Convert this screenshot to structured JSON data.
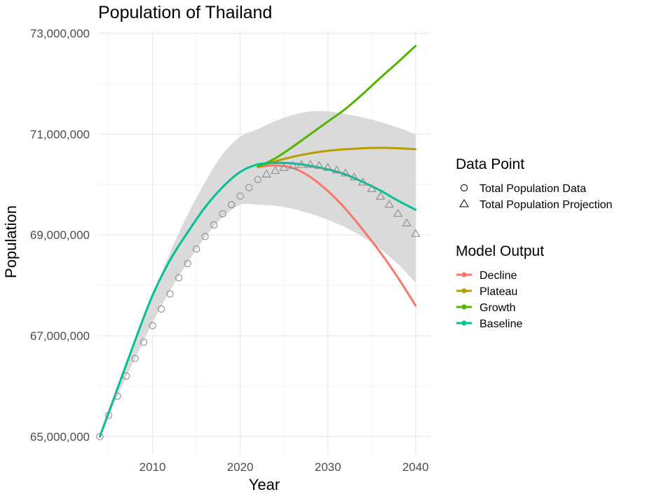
{
  "chart_data": {
    "type": "line",
    "title": "Population of Thailand",
    "xlabel": "Year",
    "ylabel": "Population",
    "xlim": [
      2003.8,
      2041.7
    ],
    "ylim": [
      64650000,
      73050000
    ],
    "x_ticks": [
      2010,
      2020,
      2030,
      2040
    ],
    "x_tick_labels": [
      "2010",
      "2020",
      "2030",
      "2040"
    ],
    "y_ticks": [
      65000000,
      67000000,
      69000000,
      71000000,
      73000000
    ],
    "y_tick_labels": [
      "65,000,000",
      "67,000,000",
      "69,000,000",
      "71,000,000",
      "73,000,000"
    ],
    "grid": true,
    "legend_position": "right",
    "colors": {
      "Decline": "#f8766d",
      "Plateau": "#b79f00",
      "Growth": "#53b400",
      "Baseline": "#00c094",
      "points": "#8c8c8c",
      "band": "#d3d3d3"
    },
    "band": {
      "x": [
        2022,
        2024,
        2026,
        2028,
        2030,
        2032,
        2034,
        2036,
        2038,
        2040
      ],
      "upper": [
        71100000,
        71260000,
        71380000,
        71450000,
        71450000,
        71400000,
        71330000,
        71240000,
        71130000,
        71000000
      ],
      "lower": [
        69600000,
        69580000,
        69520000,
        69420000,
        69300000,
        69150000,
        68960000,
        68720000,
        68420000,
        68050000
      ],
      "pre_x": [
        2004,
        2006,
        2008,
        2010,
        2012,
        2014,
        2016,
        2018,
        2020
      ],
      "pre_upper": [
        65000000,
        65950000,
        66900000,
        67800000,
        68650000,
        69400000,
        70050000,
        70600000,
        70950000
      ],
      "pre_lower": [
        65000000,
        65800000,
        66550000,
        67250000,
        67900000,
        68450000,
        68950000,
        69350000,
        69600000
      ]
    },
    "series": [
      {
        "name": "Baseline",
        "x": [
          2004,
          2006,
          2008,
          2010,
          2012,
          2014,
          2016,
          2018,
          2020,
          2022,
          2024,
          2026,
          2028,
          2030,
          2032,
          2034,
          2036,
          2038,
          2040
        ],
        "y": [
          65000000,
          65950000,
          66900000,
          67800000,
          68500000,
          69050000,
          69550000,
          69950000,
          70250000,
          70400000,
          70430000,
          70420000,
          70370000,
          70300000,
          70200000,
          70050000,
          69880000,
          69680000,
          69500000
        ]
      },
      {
        "name": "Decline",
        "x": [
          2022,
          2024,
          2026,
          2028,
          2030,
          2032,
          2034,
          2036,
          2038,
          2040
        ],
        "y": [
          70350000,
          70380000,
          70330000,
          70150000,
          69870000,
          69520000,
          69100000,
          68650000,
          68150000,
          67600000
        ]
      },
      {
        "name": "Plateau",
        "x": [
          2022,
          2024,
          2026,
          2028,
          2030,
          2032,
          2034,
          2036,
          2038,
          2040
        ],
        "y": [
          70350000,
          70460000,
          70550000,
          70620000,
          70670000,
          70700000,
          70720000,
          70730000,
          70720000,
          70700000
        ]
      },
      {
        "name": "Growth",
        "x": [
          2022,
          2024,
          2026,
          2028,
          2030,
          2032,
          2034,
          2036,
          2038,
          2040
        ],
        "y": [
          70350000,
          70520000,
          70750000,
          71000000,
          71250000,
          71500000,
          71800000,
          72120000,
          72430000,
          72750000
        ]
      }
    ],
    "points": [
      {
        "name": "Total Population Data",
        "marker": "circle",
        "x": [
          2004,
          2005,
          2006,
          2007,
          2008,
          2009,
          2010,
          2011,
          2012,
          2013,
          2014,
          2015,
          2016,
          2017,
          2018,
          2019,
          2020,
          2021,
          2022
        ],
        "y": [
          65000000,
          65420000,
          65800000,
          66200000,
          66550000,
          66870000,
          67200000,
          67530000,
          67830000,
          68150000,
          68430000,
          68720000,
          68970000,
          69200000,
          69420000,
          69600000,
          69770000,
          69940000,
          70100000
        ]
      },
      {
        "name": "Total Population Projection",
        "marker": "triangle",
        "x": [
          2023,
          2024,
          2025,
          2026,
          2027,
          2028,
          2029,
          2030,
          2031,
          2032,
          2033,
          2034,
          2035,
          2036,
          2037,
          2038,
          2039,
          2040
        ],
        "y": [
          70200000,
          70270000,
          70330000,
          70370000,
          70390000,
          70390000,
          70370000,
          70330000,
          70280000,
          70220000,
          70140000,
          70040000,
          69910000,
          69760000,
          69600000,
          69420000,
          69230000,
          69020000
        ]
      }
    ],
    "legends": [
      {
        "title": "Data Point",
        "items": [
          {
            "label": "Total Population Data",
            "marker": "circle"
          },
          {
            "label": "Total Population Projection",
            "marker": "triangle"
          }
        ]
      },
      {
        "title": "Model Output",
        "items": [
          {
            "label": "Decline",
            "marker": "line-dot",
            "color": "#f8766d"
          },
          {
            "label": "Plateau",
            "marker": "line-dot",
            "color": "#b79f00"
          },
          {
            "label": "Growth",
            "marker": "line-dot",
            "color": "#53b400"
          },
          {
            "label": "Baseline",
            "marker": "line-dot",
            "color": "#00c094"
          }
        ]
      }
    ]
  }
}
